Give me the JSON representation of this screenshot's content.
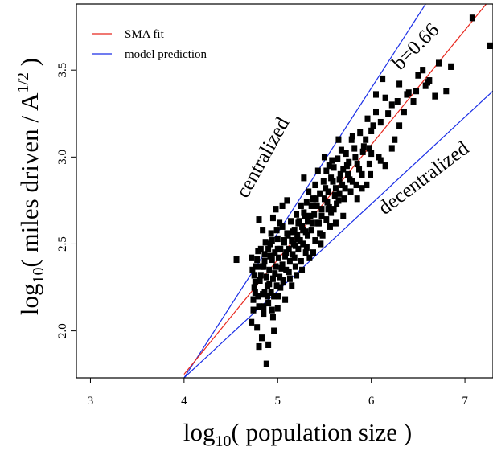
{
  "chart_data": {
    "type": "scatter",
    "xlabel": "log",
    "xlabel_sub": "10",
    "xlabel_rest": "( population size )",
    "ylabel": "log",
    "ylabel_sub": "10",
    "ylabel_mid": "( miles driven / A",
    "ylabel_sup": "1/2",
    "ylabel_end": " )",
    "xlim": [
      2.85,
      7.3
    ],
    "ylim": [
      1.73,
      3.88
    ],
    "x_ticks": [
      "3",
      "4",
      "5",
      "6",
      "7"
    ],
    "y_ticks": [
      "2.0",
      "2.5",
      "3.0",
      "3.5"
    ],
    "grid": false,
    "legend_position": "top-left",
    "series": [
      {
        "name": "SMA fit",
        "color": "#e8281e",
        "slope": 0.66,
        "intercept": -0.89,
        "x_range": [
          4.0,
          7.3
        ]
      },
      {
        "name": "model prediction",
        "color": "#1a2ee6",
        "lines": [
          {
            "slope": 0.8333,
            "intercept": -1.6033,
            "x_range": [
              4.0,
              7.3
            ]
          },
          {
            "slope": 0.5,
            "intercept": -0.27,
            "x_range": [
              4.0,
              7.3
            ]
          }
        ]
      }
    ],
    "annotations": [
      {
        "text": "centralized",
        "x": 4.9,
        "y": 2.98,
        "angle": -61
      },
      {
        "text": "b=0.66",
        "x": 6.52,
        "y": 3.61,
        "angle": -45
      },
      {
        "text": "decentralized",
        "x": 6.6,
        "y": 2.85,
        "angle": -37
      }
    ],
    "points": [
      [
        4.56,
        2.41
      ],
      [
        4.72,
        2.05
      ],
      [
        4.74,
        2.18
      ],
      [
        4.75,
        2.32
      ],
      [
        4.76,
        2.22
      ],
      [
        4.78,
        2.41
      ],
      [
        4.8,
        2.14
      ],
      [
        4.81,
        2.29
      ],
      [
        4.83,
        2.37
      ],
      [
        4.84,
        2.21
      ],
      [
        4.85,
        2.1
      ],
      [
        4.86,
        2.44
      ],
      [
        4.88,
        2.31
      ],
      [
        4.89,
        2.26
      ],
      [
        4.9,
        2.16
      ],
      [
        4.91,
        2.35
      ],
      [
        4.92,
        2.5
      ],
      [
        4.93,
        2.22
      ],
      [
        4.94,
        2.41
      ],
      [
        4.95,
        2.3
      ],
      [
        4.96,
        2.2
      ],
      [
        4.97,
        2.45
      ],
      [
        4.98,
        2.37
      ],
      [
        4.99,
        2.26
      ],
      [
        5.0,
        2.53
      ],
      [
        5.01,
        2.42
      ],
      [
        5.02,
        2.31
      ],
      [
        5.03,
        2.47
      ],
      [
        5.04,
        2.36
      ],
      [
        5.05,
        2.6
      ],
      [
        5.06,
        2.29
      ],
      [
        5.07,
        2.51
      ],
      [
        5.08,
        2.43
      ],
      [
        5.09,
        2.35
      ],
      [
        5.1,
        2.56
      ],
      [
        5.12,
        2.47
      ],
      [
        5.13,
        2.4
      ],
      [
        5.14,
        2.63
      ],
      [
        5.15,
        2.52
      ],
      [
        5.16,
        2.44
      ],
      [
        5.18,
        2.58
      ],
      [
        5.19,
        2.49
      ],
      [
        5.2,
        2.67
      ],
      [
        5.21,
        2.55
      ],
      [
        5.22,
        2.62
      ],
      [
        5.24,
        2.52
      ],
      [
        5.25,
        2.72
      ],
      [
        5.26,
        2.6
      ],
      [
        5.27,
        2.5
      ],
      [
        5.28,
        2.68
      ],
      [
        5.3,
        2.57
      ],
      [
        5.31,
        2.74
      ],
      [
        5.32,
        2.63
      ],
      [
        5.33,
        2.8
      ],
      [
        5.35,
        2.66
      ],
      [
        5.36,
        2.58
      ],
      [
        5.38,
        2.76
      ],
      [
        5.39,
        2.67
      ],
      [
        5.4,
        2.84
      ],
      [
        5.42,
        2.72
      ],
      [
        5.43,
        2.62
      ],
      [
        5.45,
        2.79
      ],
      [
        5.47,
        2.7
      ],
      [
        5.49,
        2.86
      ],
      [
        5.5,
        2.76
      ],
      [
        5.52,
        2.92
      ],
      [
        5.54,
        2.8
      ],
      [
        5.55,
        2.71
      ],
      [
        5.57,
        2.88
      ],
      [
        5.6,
        2.94
      ],
      [
        5.62,
        2.82
      ],
      [
        5.64,
        2.99
      ],
      [
        5.66,
        2.87
      ],
      [
        5.68,
        3.04
      ],
      [
        5.7,
        2.93
      ],
      [
        5.73,
        3.02
      ],
      [
        5.76,
        2.97
      ],
      [
        5.79,
        3.1
      ],
      [
        5.82,
        3.05
      ],
      [
        5.85,
        2.96
      ],
      [
        5.88,
        3.14
      ],
      [
        5.92,
        3.06
      ],
      [
        5.96,
        3.22
      ],
      [
        6.0,
        3.15
      ],
      [
        6.05,
        3.26
      ],
      [
        6.1,
        3.2
      ],
      [
        6.15,
        3.34
      ],
      [
        6.22,
        3.3
      ],
      [
        6.3,
        3.42
      ],
      [
        6.4,
        3.37
      ],
      [
        6.5,
        3.47
      ],
      [
        6.6,
        3.43
      ],
      [
        6.72,
        3.54
      ],
      [
        6.85,
        3.52
      ],
      [
        7.08,
        3.8
      ],
      [
        7.27,
        3.64
      ],
      [
        4.72,
        2.42
      ],
      [
        4.75,
        2.25
      ],
      [
        4.77,
        2.37
      ],
      [
        4.82,
        2.47
      ],
      [
        4.84,
        2.58
      ],
      [
        4.8,
        2.64
      ],
      [
        4.87,
        2.51
      ],
      [
        4.93,
        2.56
      ],
      [
        4.95,
        2.65
      ],
      [
        4.98,
        2.7
      ],
      [
        5.05,
        2.72
      ],
      [
        5.1,
        2.75
      ],
      [
        5.03,
        2.25
      ],
      [
        5.0,
        2.13
      ],
      [
        4.96,
        2.0
      ],
      [
        4.9,
        1.92
      ],
      [
        4.83,
        1.96
      ],
      [
        4.78,
        2.02
      ],
      [
        4.8,
        1.91
      ],
      [
        4.88,
        1.81
      ],
      [
        4.95,
        2.08
      ],
      [
        5.08,
        2.18
      ],
      [
        5.15,
        2.26
      ],
      [
        5.2,
        2.32
      ],
      [
        5.26,
        2.35
      ],
      [
        5.34,
        2.42
      ],
      [
        5.38,
        2.45
      ],
      [
        5.46,
        2.5
      ],
      [
        5.48,
        2.55
      ],
      [
        5.56,
        2.6
      ],
      [
        5.6,
        2.7
      ],
      [
        5.65,
        2.75
      ],
      [
        5.72,
        2.82
      ],
      [
        5.8,
        2.86
      ],
      [
        5.9,
        2.9
      ],
      [
        5.98,
        2.96
      ],
      [
        6.08,
        3.0
      ],
      [
        6.22,
        3.05
      ],
      [
        5.5,
        3.0
      ],
      [
        5.65,
        3.1
      ],
      [
        5.58,
        2.98
      ],
      [
        5.8,
        3.12
      ],
      [
        6.0,
        3.02
      ],
      [
        6.15,
        2.95
      ],
      [
        6.3,
        3.18
      ],
      [
        6.35,
        3.26
      ],
      [
        6.45,
        3.32
      ],
      [
        6.58,
        3.41
      ],
      [
        6.68,
        3.35
      ],
      [
        6.8,
        3.38
      ],
      [
        6.25,
        3.1
      ],
      [
        5.98,
        3.05
      ],
      [
        6.05,
        3.36
      ],
      [
        6.12,
        3.45
      ],
      [
        5.43,
        2.92
      ],
      [
        5.55,
        2.95
      ],
      [
        5.28,
        2.88
      ],
      [
        5.75,
        2.9
      ],
      [
        5.7,
        2.66
      ],
      [
        5.62,
        2.62
      ],
      [
        5.85,
        2.76
      ],
      [
        5.95,
        2.84
      ],
      [
        5.18,
        2.42
      ],
      [
        5.22,
        2.47
      ],
      [
        5.32,
        2.55
      ],
      [
        5.44,
        2.62
      ],
      [
        5.54,
        2.7
      ],
      [
        5.66,
        2.79
      ],
      [
        5.12,
        2.34
      ],
      [
        5.05,
        2.38
      ],
      [
        4.97,
        2.33
      ],
      [
        4.91,
        2.27
      ],
      [
        4.86,
        2.22
      ],
      [
        4.79,
        2.2
      ],
      [
        4.74,
        2.12
      ],
      [
        4.76,
        2.28
      ],
      [
        4.82,
        2.32
      ],
      [
        4.85,
        2.37
      ],
      [
        4.92,
        2.43
      ],
      [
        5.0,
        2.47
      ],
      [
        5.07,
        2.52
      ],
      [
        5.16,
        2.57
      ],
      [
        5.23,
        2.63
      ],
      [
        5.29,
        2.66
      ],
      [
        5.36,
        2.72
      ],
      [
        5.41,
        2.76
      ],
      [
        5.51,
        2.82
      ],
      [
        5.59,
        2.86
      ],
      [
        5.67,
        2.9
      ],
      [
        5.74,
        2.95
      ],
      [
        5.83,
        3.0
      ],
      [
        5.91,
        3.03
      ],
      [
        5.94,
        3.1
      ],
      [
        6.02,
        3.18
      ],
      [
        6.18,
        3.25
      ],
      [
        6.28,
        3.32
      ],
      [
        6.38,
        3.36
      ],
      [
        6.48,
        3.38
      ],
      [
        6.55,
        3.5
      ],
      [
        6.62,
        3.44
      ],
      [
        4.73,
        2.35
      ],
      [
        4.79,
        2.46
      ],
      [
        4.86,
        2.4
      ],
      [
        4.9,
        2.47
      ],
      [
        4.94,
        2.52
      ],
      [
        4.99,
        2.58
      ],
      [
        5.02,
        2.62
      ],
      [
        5.09,
        2.45
      ],
      [
        5.11,
        2.55
      ],
      [
        5.17,
        2.5
      ],
      [
        5.21,
        2.53
      ],
      [
        5.27,
        2.58
      ],
      [
        5.31,
        2.48
      ],
      [
        5.37,
        2.62
      ],
      [
        5.47,
        2.66
      ],
      [
        5.53,
        2.74
      ],
      [
        5.61,
        2.78
      ],
      [
        5.69,
        2.84
      ],
      [
        5.77,
        2.87
      ],
      [
        5.87,
        2.93
      ],
      [
        4.85,
        2.14
      ],
      [
        4.89,
        2.2
      ],
      [
        4.94,
        2.12
      ],
      [
        5.01,
        2.2
      ],
      [
        5.06,
        2.28
      ],
      [
        5.13,
        2.3
      ],
      [
        5.19,
        2.37
      ],
      [
        5.25,
        2.4
      ],
      [
        5.3,
        2.45
      ],
      [
        5.4,
        2.52
      ],
      [
        5.45,
        2.56
      ],
      [
        5.52,
        2.64
      ],
      [
        5.57,
        2.68
      ],
      [
        5.63,
        2.73
      ],
      [
        5.71,
        2.76
      ],
      [
        5.78,
        2.8
      ],
      [
        5.84,
        2.84
      ],
      [
        5.9,
        2.82
      ],
      [
        5.99,
        2.9
      ],
      [
        6.1,
        2.98
      ]
    ]
  }
}
